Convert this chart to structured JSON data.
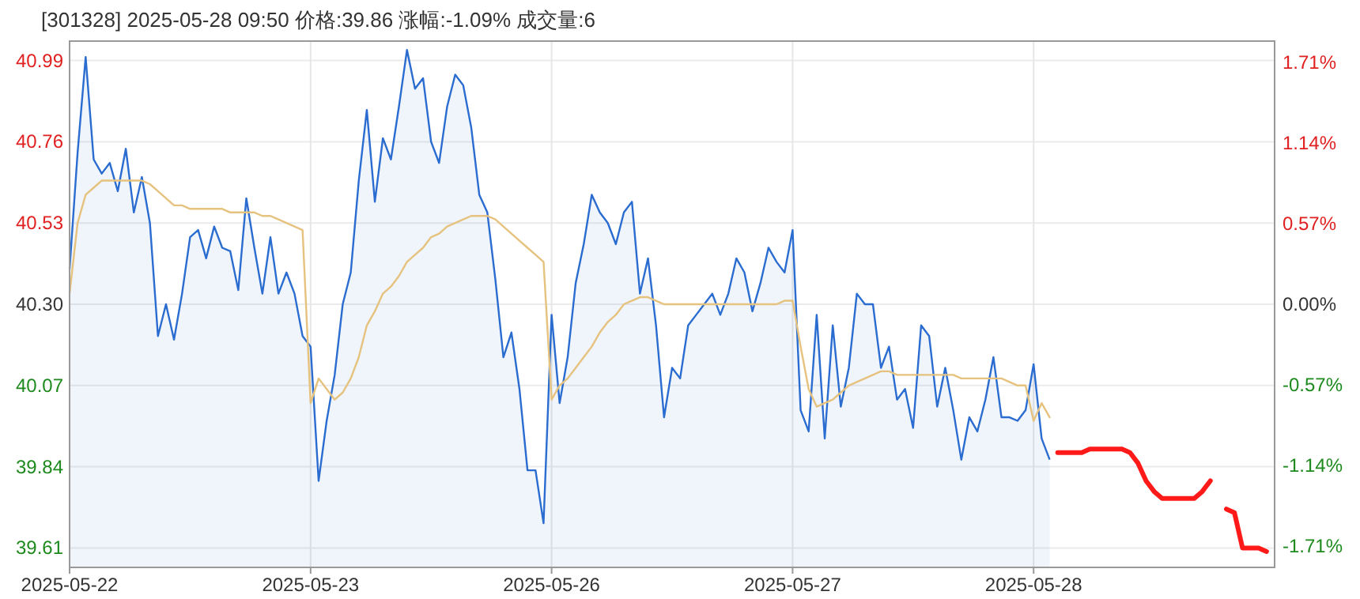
{
  "chart_data": {
    "type": "line",
    "title": "[301328]  2025-05-28 09:50  价格:39.86  涨幅:-1.09%  成交量:6",
    "categories": [
      "2025-05-22",
      null,
      null,
      null,
      null,
      null,
      null,
      null,
      null,
      null,
      null,
      null,
      null,
      null,
      null,
      null,
      null,
      null,
      null,
      null,
      null,
      null,
      null,
      null,
      null,
      null,
      null,
      null,
      null,
      null,
      "2025-05-23",
      null,
      null,
      null,
      null,
      null,
      null,
      null,
      null,
      null,
      null,
      null,
      null,
      null,
      null,
      null,
      null,
      null,
      null,
      null,
      null,
      null,
      null,
      null,
      null,
      null,
      null,
      null,
      null,
      null,
      "2025-05-26",
      null,
      null,
      null,
      null,
      null,
      null,
      null,
      null,
      null,
      null,
      null,
      null,
      null,
      null,
      null,
      null,
      null,
      null,
      null,
      null,
      null,
      null,
      null,
      null,
      null,
      null,
      null,
      null,
      null,
      "2025-05-27",
      null,
      null,
      null,
      null,
      null,
      null,
      null,
      null,
      null,
      null,
      null,
      null,
      null,
      null,
      null,
      null,
      null,
      null,
      null,
      null,
      null,
      null,
      null,
      null,
      null,
      null,
      null,
      null,
      null,
      "2025-05-28",
      null,
      null,
      null,
      null,
      null,
      null,
      null,
      null,
      null,
      null,
      null,
      null,
      null,
      null,
      null,
      null,
      null,
      null,
      null,
      null,
      null,
      null,
      null,
      null,
      null,
      null,
      null,
      null,
      null
    ],
    "ylim": [
      39.555,
      41.045
    ],
    "yticks": [
      40.99,
      40.76,
      40.53,
      {
        "value": 40.3,
        "label": "40.30"
      },
      40.07,
      39.84,
      39.61
    ],
    "y2lim": [
      -1.86,
      1.86
    ],
    "y2ticks": [
      {
        "value": 1.71,
        "label": "1.71%"
      },
      {
        "value": 1.14,
        "label": "1.14%"
      },
      {
        "value": 0.57,
        "label": "0.57%"
      },
      {
        "value": 0,
        "label": "0.00%"
      },
      {
        "value": -0.57,
        "label": "-0.57%"
      },
      {
        "value": -1.14,
        "label": "-1.14%"
      },
      {
        "value": -1.71,
        "label": "-1.71%"
      }
    ],
    "grid": true,
    "series": [
      {
        "type": "area",
        "color": "#2a6ccf",
        "values": [
          40.4,
          40.73,
          41.0,
          40.71,
          40.67,
          40.7,
          40.62,
          40.74,
          40.56,
          40.66,
          40.53,
          40.21,
          40.3,
          40.2,
          40.33,
          40.49,
          40.51,
          40.43,
          40.52,
          40.46,
          40.45,
          40.34,
          40.6,
          40.46,
          40.33,
          40.49,
          40.33,
          40.39,
          40.33,
          40.21,
          40.18,
          39.8,
          39.97,
          40.1,
          40.3,
          40.39,
          40.65,
          40.85,
          40.59,
          40.77,
          40.71,
          40.86,
          41.02,
          40.91,
          40.94,
          40.76,
          40.7,
          40.86,
          40.95,
          40.92,
          40.8,
          40.61,
          40.56,
          40.37,
          40.15,
          40.22,
          40.06,
          39.83,
          39.83,
          39.68,
          40.27,
          40.02,
          40.15,
          40.36,
          40.47,
          40.61,
          40.56,
          40.53,
          40.47,
          40.56,
          40.59,
          40.33,
          40.43,
          40.24,
          39.98,
          40.12,
          40.09,
          40.24,
          40.27,
          40.3,
          40.33,
          40.27,
          40.33,
          40.43,
          40.39,
          40.28,
          40.36,
          40.46,
          40.42,
          40.39,
          40.51,
          40.0,
          39.94,
          40.27,
          39.92,
          40.24,
          40.01,
          40.12,
          40.33,
          40.3,
          40.3,
          40.12,
          40.18,
          40.03,
          40.06,
          39.95,
          40.24,
          40.21,
          40.01,
          40.12,
          40.0,
          39.86,
          39.98,
          39.94,
          40.03,
          40.15,
          39.98,
          39.98,
          39.97,
          40.0,
          40.13,
          39.92,
          39.86,
          null,
          null,
          null,
          null,
          null,
          null,
          null,
          null,
          null,
          null,
          null,
          null,
          null,
          null,
          null,
          null,
          null,
          null,
          null,
          null,
          null,
          null,
          null,
          null,
          null,
          null,
          null
        ]
      },
      {
        "color": "#e6c27f",
        "values": [
          40.33,
          40.53,
          40.61,
          40.63,
          40.65,
          40.65,
          40.65,
          40.65,
          40.65,
          40.65,
          40.64,
          40.62,
          40.6,
          40.58,
          40.58,
          40.57,
          40.57,
          40.57,
          40.57,
          40.57,
          40.56,
          40.56,
          40.56,
          40.56,
          40.55,
          40.55,
          40.54,
          40.53,
          40.52,
          40.51,
          40.02,
          40.09,
          40.06,
          40.03,
          40.05,
          40.09,
          40.15,
          40.24,
          40.28,
          40.33,
          40.35,
          40.38,
          40.42,
          40.44,
          40.46,
          40.49,
          40.5,
          40.52,
          40.53,
          40.54,
          40.55,
          40.55,
          40.55,
          40.54,
          40.52,
          40.5,
          40.48,
          40.46,
          40.44,
          40.42,
          40.03,
          40.07,
          40.09,
          40.12,
          40.15,
          40.18,
          40.22,
          40.25,
          40.27,
          40.3,
          40.31,
          40.32,
          40.32,
          40.31,
          40.3,
          40.3,
          40.3,
          40.3,
          40.3,
          40.3,
          40.3,
          40.3,
          40.3,
          40.3,
          40.3,
          40.3,
          40.3,
          40.3,
          40.3,
          40.31,
          40.31,
          40.18,
          40.06,
          40.01,
          40.02,
          40.03,
          40.05,
          40.07,
          40.08,
          40.09,
          40.1,
          40.11,
          40.11,
          40.1,
          40.1,
          40.1,
          40.1,
          40.1,
          40.1,
          40.1,
          40.1,
          40.09,
          40.09,
          40.09,
          40.09,
          40.09,
          40.09,
          40.08,
          40.07,
          40.07,
          39.97,
          40.02,
          39.98,
          null,
          null,
          null,
          null,
          null,
          null,
          null,
          null,
          null,
          null,
          null,
          null,
          null,
          null,
          null,
          null,
          null,
          null,
          null,
          null,
          null,
          null,
          null,
          null,
          null,
          null,
          null
        ]
      },
      {
        "color": "#ff1a1a",
        "values": [
          null,
          null,
          null,
          null,
          null,
          null,
          null,
          null,
          null,
          null,
          null,
          null,
          null,
          null,
          null,
          null,
          null,
          null,
          null,
          null,
          null,
          null,
          null,
          null,
          null,
          null,
          null,
          null,
          null,
          null,
          null,
          null,
          null,
          null,
          null,
          null,
          null,
          null,
          null,
          null,
          null,
          null,
          null,
          null,
          null,
          null,
          null,
          null,
          null,
          null,
          null,
          null,
          null,
          null,
          null,
          null,
          null,
          null,
          null,
          null,
          null,
          null,
          null,
          null,
          null,
          null,
          null,
          null,
          null,
          null,
          null,
          null,
          null,
          null,
          null,
          null,
          null,
          null,
          null,
          null,
          null,
          null,
          null,
          null,
          null,
          null,
          null,
          null,
          null,
          null,
          null,
          null,
          null,
          null,
          null,
          null,
          null,
          null,
          null,
          null,
          null,
          null,
          null,
          null,
          null,
          null,
          null,
          null,
          null,
          null,
          null,
          null,
          null,
          null,
          null,
          null,
          null,
          null,
          null,
          null,
          null,
          null,
          null,
          39.88,
          39.88,
          39.88,
          39.88,
          39.89,
          39.89,
          39.89,
          39.89,
          39.89,
          39.88,
          39.85,
          39.8,
          39.77,
          39.75,
          39.75,
          39.75,
          39.75,
          39.75,
          39.77,
          39.8,
          null,
          39.72,
          39.71,
          39.61,
          39.61,
          39.61,
          39.6
        ]
      }
    ]
  }
}
